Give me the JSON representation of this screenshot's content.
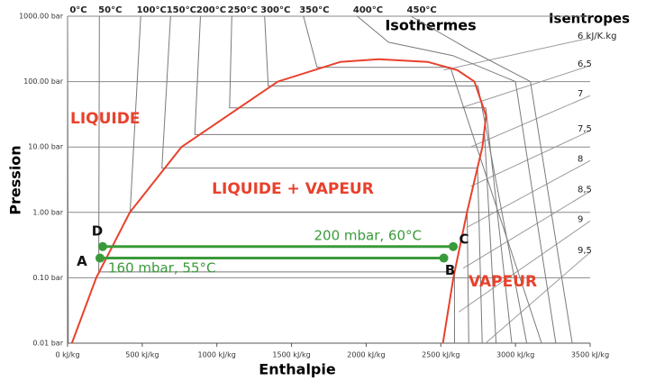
{
  "chart_data": {
    "type": "line",
    "x_label": "Enthalpie",
    "y_label": "Pression",
    "log_y": true,
    "grid": true,
    "xlim": [
      0,
      3500
    ],
    "ylim": [
      0.01,
      1000
    ],
    "xticks": [
      {
        "value": 0,
        "label": "0 kJ/kg"
      },
      {
        "value": 500,
        "label": "500 kJ/kg"
      },
      {
        "value": 1000,
        "label": "1000 kJ/kg"
      },
      {
        "value": 1500,
        "label": "1500 kJ/kg"
      },
      {
        "value": 2000,
        "label": "2000 kJ/kg"
      },
      {
        "value": 2500,
        "label": "2500 kJ/kg"
      },
      {
        "value": 3000,
        "label": "3000 kJ/kg"
      },
      {
        "value": 3500,
        "label": "3500 kJ/kg"
      }
    ],
    "yticks": [
      {
        "value": 0.01,
        "label": "0.01 bar"
      },
      {
        "value": 0.1,
        "label": "0.10 bar"
      },
      {
        "value": 1,
        "label": "1.00 bar"
      },
      {
        "value": 10,
        "label": "10.00 bar"
      },
      {
        "value": 100,
        "label": "100.00 bar"
      },
      {
        "value": 1000,
        "label": "1000.00 bar"
      }
    ],
    "saturation": {
      "color": "#e8412c",
      "x": [
        29,
        192,
        417,
        763,
        1408,
        1827,
        2084,
        2412,
        2610,
        2725,
        2803,
        2778,
        2675,
        2584,
        2514
      ],
      "y": [
        0.01,
        0.1,
        1,
        10,
        100,
        200,
        220.6,
        200,
        150,
        100,
        30,
        10,
        1,
        0.1,
        0.01
      ]
    },
    "isotherms": {
      "title": "Isothermes",
      "color": "#7a7a7a",
      "lines": [
        {
          "name": "0°C",
          "x": [
            0,
            5
          ],
          "y": [
            1000,
            0.01
          ]
        },
        {
          "name": "50°C",
          "x": [
            213,
            209,
            2591,
            2592
          ],
          "y": [
            1000,
            0.123,
            0.123,
            0.01
          ]
        },
        {
          "name": "100°C",
          "x": [
            490,
            419,
            2676,
            2687
          ],
          "y": [
            1000,
            1.013,
            1.013,
            0.01
          ]
        },
        {
          "name": "150°C",
          "x": [
            690,
            632,
            2746,
            2777
          ],
          "y": [
            1000,
            4.76,
            4.76,
            0.01
          ]
        },
        {
          "name": "200°C",
          "x": [
            890,
            852,
            2793,
            2870
          ],
          "y": [
            1000,
            15.5,
            15.5,
            0.01
          ]
        },
        {
          "name": "250°C",
          "x": [
            1100,
            1085,
            2801,
            2975
          ],
          "y": [
            1000,
            39.7,
            39.7,
            0.01
          ]
        },
        {
          "name": "300°C",
          "x": [
            1320,
            1344,
            2749,
            3075
          ],
          "y": [
            1000,
            85.9,
            85.9,
            0.01
          ]
        },
        {
          "name": "350°C",
          "x": [
            1580,
            1671,
            2564,
            3175
          ],
          "y": [
            1000,
            165,
            165,
            0.01
          ]
        },
        {
          "name": "400°C",
          "x": [
            1940,
            2150,
            2580,
            3000,
            3270
          ],
          "y": [
            1000,
            400,
            250,
            100,
            0.01
          ]
        },
        {
          "name": "450°C",
          "x": [
            2300,
            2700,
            3100,
            3380
          ],
          "y": [
            1000,
            300,
            100,
            0.01
          ]
        }
      ]
    },
    "isentropes": {
      "title": "Isentropes",
      "color": "#9a9a9a",
      "lines": [
        {
          "name": "6 kJ/K.kg",
          "x": [
            2520,
            3500
          ],
          "y": [
            150,
            466
          ]
        },
        {
          "name": "6,5",
          "x": [
            2640,
            3500
          ],
          "y": [
            40,
            176
          ]
        },
        {
          "name": "7",
          "x": [
            2700,
            3500
          ],
          "y": [
            10,
            61
          ]
        },
        {
          "name": "7,5",
          "x": [
            2700,
            3500
          ],
          "y": [
            2.5,
            17.7
          ]
        },
        {
          "name": "8",
          "x": [
            2680,
            3500
          ],
          "y": [
            0.6,
            6.2
          ]
        },
        {
          "name": "8,5",
          "x": [
            2650,
            3500
          ],
          "y": [
            0.14,
            2.1
          ]
        },
        {
          "name": "9",
          "x": [
            2620,
            3500
          ],
          "y": [
            0.03,
            0.74
          ]
        },
        {
          "name": "9,5",
          "x": [
            2800,
            3500
          ],
          "y": [
            0.01,
            0.245
          ]
        }
      ]
    },
    "regions": [
      {
        "label": "LIQUIDE",
        "color": "#e8412c"
      },
      {
        "label": "LIQUIDE + VAPEUR",
        "color": "#e8412c"
      },
      {
        "label": "VAPEUR",
        "color": "#e8412c"
      }
    ],
    "cycle": {
      "color": "#3a9a3a",
      "points": [
        {
          "name": "A",
          "x": 217,
          "y": 0.2
        },
        {
          "name": "B",
          "x": 2520,
          "y": 0.2
        },
        {
          "name": "C",
          "x": 2583,
          "y": 0.3
        },
        {
          "name": "D",
          "x": 235,
          "y": 0.3
        }
      ],
      "annotations": [
        "200 mbar, 60°C",
        "160 mbar, 55°C"
      ]
    }
  }
}
